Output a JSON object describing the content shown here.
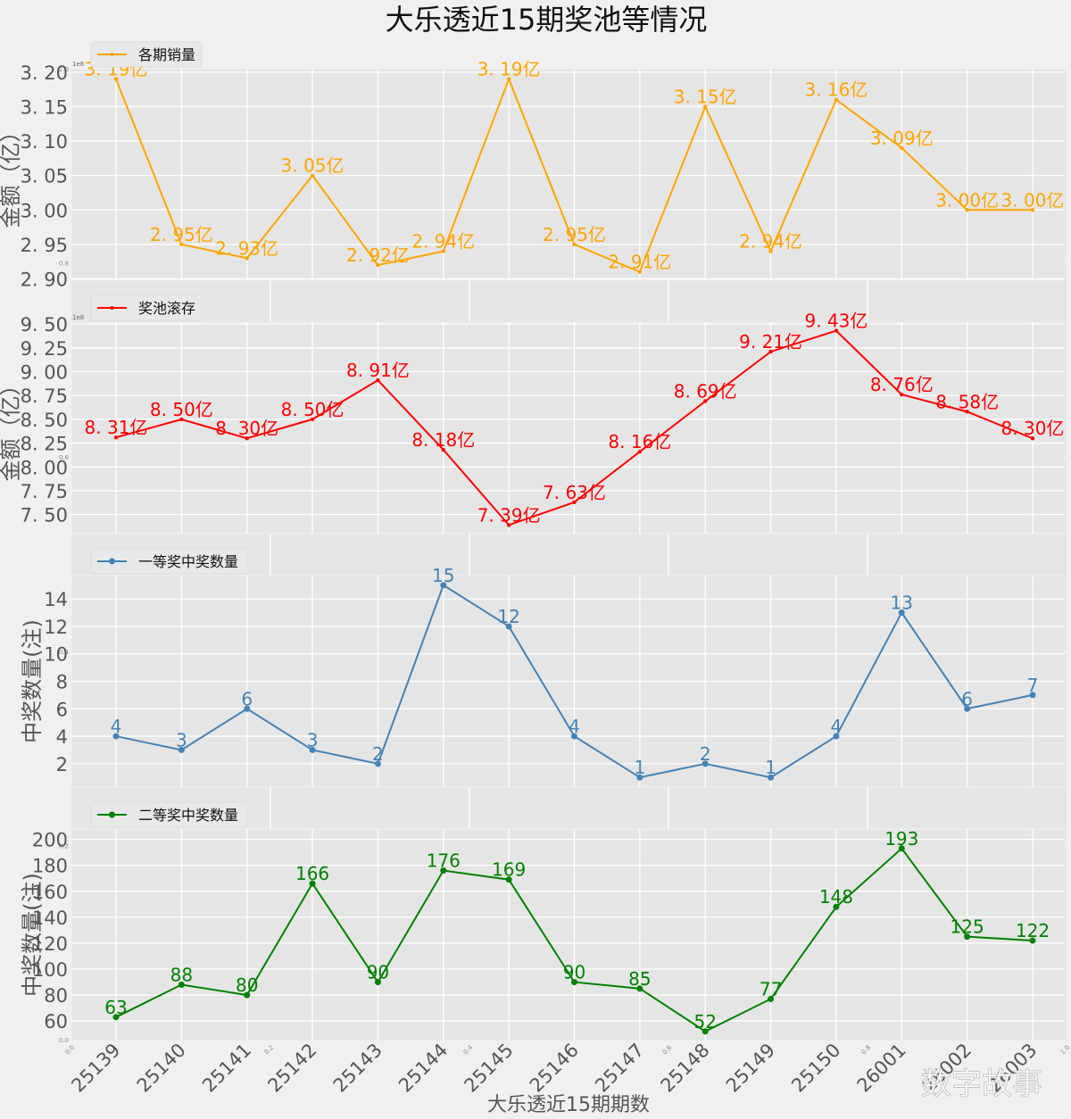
{
  "chart_data": {
    "type": "line",
    "title": "大乐透近15期奖池等情况",
    "xlabel": "大乐透近15期期数",
    "categories": [
      "25139",
      "25140",
      "25141",
      "25142",
      "25143",
      "25144",
      "25145",
      "25146",
      "25147",
      "25148",
      "25149",
      "25150",
      "26001",
      "26002",
      "26003"
    ],
    "watermark": "数字故事",
    "panels": [
      {
        "name": "各期销量",
        "ylabel": "金额（亿）",
        "color": "#ffa500",
        "marker": "star",
        "unit_suffix": "亿",
        "label_decimals": 2,
        "offset_text": "1e8",
        "ylim": [
          2.898,
          3.205
        ],
        "yticks": [
          2.9,
          2.95,
          3.0,
          3.05,
          3.1,
          3.15,
          3.2
        ],
        "ytick_decimals": 2,
        "values": [
          3.19,
          2.95,
          2.93,
          3.05,
          2.92,
          2.94,
          3.19,
          2.95,
          2.91,
          3.15,
          2.94,
          3.16,
          3.09,
          3.0,
          3.0
        ]
      },
      {
        "name": "奖池滚存",
        "ylabel": "金额（亿）",
        "color": "#ff0000",
        "marker": "star",
        "unit_suffix": "亿",
        "label_decimals": 2,
        "offset_text": "1e8",
        "ylim": [
          7.3,
          9.52
        ],
        "yticks": [
          7.5,
          7.75,
          8.0,
          8.25,
          8.5,
          8.75,
          9.0,
          9.25,
          9.5
        ],
        "ytick_decimals": 2,
        "values": [
          8.31,
          8.5,
          8.3,
          8.5,
          8.91,
          8.18,
          7.39,
          7.63,
          8.16,
          8.69,
          9.21,
          9.43,
          8.76,
          8.58,
          8.3
        ]
      },
      {
        "name": "一等奖中奖数量",
        "ylabel": "中奖数量(注)",
        "color": "#4682b4",
        "marker": "circle",
        "unit_suffix": "",
        "label_decimals": 0,
        "offset_text": "",
        "ylim": [
          0.3,
          15.7
        ],
        "yticks": [
          2,
          4,
          6,
          8,
          10,
          12,
          14
        ],
        "ytick_decimals": 0,
        "values": [
          4,
          3,
          6,
          3,
          2,
          15,
          12,
          4,
          1,
          2,
          1,
          4,
          13,
          6,
          7
        ]
      },
      {
        "name": "二等奖中奖数量",
        "ylabel": "中奖数量(注)",
        "color": "#008000",
        "marker": "circle",
        "unit_suffix": "",
        "label_decimals": 0,
        "offset_text": "",
        "ylim": [
          45,
          208
        ],
        "yticks": [
          60,
          80,
          100,
          120,
          140,
          160,
          180,
          200
        ],
        "ytick_decimals": 0,
        "values": [
          63,
          88,
          80,
          166,
          90,
          176,
          169,
          90,
          85,
          52,
          77,
          148,
          193,
          125,
          122
        ]
      }
    ],
    "background_axes": {
      "xticks": [
        "0.0",
        "0.2",
        "0.4",
        "0.6",
        "0.8",
        "1.0"
      ],
      "yticks": [
        "0.0",
        "0.2",
        "0.4",
        "0.6",
        "0.8",
        "1.0"
      ]
    },
    "grid": true,
    "legend_position": "upper-left (above each panel)"
  }
}
